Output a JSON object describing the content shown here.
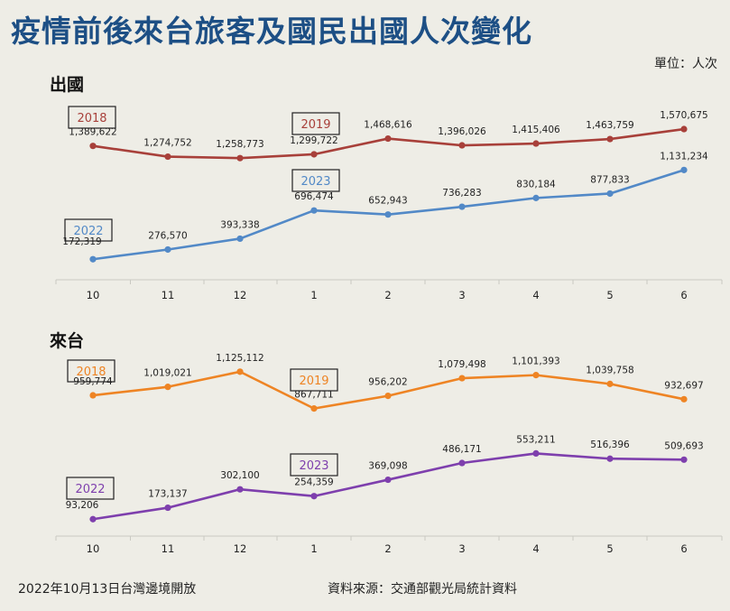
{
  "title": "疫情前後來台旅客及國民出國人次變化",
  "unit": "單位：人次",
  "footer_left": "2022年10月13日台灣邊境開放",
  "footer_right": "資料來源：交通部觀光局統計資料",
  "chart_data": [
    {
      "type": "line",
      "title": "出國",
      "categories": [
        "10",
        "11",
        "12",
        "1",
        "2",
        "3",
        "4",
        "5",
        "6"
      ],
      "series": [
        {
          "name": "2018",
          "start_name": "2018",
          "mid_name": "2019",
          "color": "#a8403a",
          "values": [
            1389622,
            1274752,
            1258773,
            1299722,
            1468616,
            1396026,
            1415406,
            1463759,
            1570675
          ],
          "labels": [
            "1,389,622",
            "1,274,752",
            "1,258,773",
            "1,299,722",
            "1,468,616",
            "1,396,026",
            "1,415,406",
            "1,463,759",
            "1,570,675"
          ]
        },
        {
          "name": "2022",
          "start_name": "2022",
          "mid_name": "2023",
          "color": "#5289c7",
          "values": [
            172319,
            276570,
            393338,
            696474,
            652943,
            736283,
            830184,
            877833,
            1131234
          ],
          "labels": [
            "172,319",
            "276,570",
            "393,338",
            "696,474",
            "652,943",
            "736,283",
            "830,184",
            "877,833",
            "1,131,234"
          ]
        }
      ],
      "xlabel": "",
      "ylabel": ""
    },
    {
      "type": "line",
      "title": "來台",
      "categories": [
        "10",
        "11",
        "12",
        "1",
        "2",
        "3",
        "4",
        "5",
        "6"
      ],
      "series": [
        {
          "name": "2018",
          "start_name": "2018",
          "mid_name": "2019",
          "color": "#ee8424",
          "values": [
            959774,
            1019021,
            1125112,
            867711,
            956202,
            1079498,
            1101393,
            1039758,
            932697
          ],
          "labels": [
            "959,774",
            "1,019,021",
            "1,125,112",
            "867,711",
            "956,202",
            "1,079,498",
            "1,101,393",
            "1,039,758",
            "932,697"
          ]
        },
        {
          "name": "2022",
          "start_name": "2022",
          "mid_name": "2023",
          "color": "#7e3fad",
          "values": [
            93206,
            173137,
            302100,
            254359,
            369098,
            486171,
            553211,
            516396,
            509693
          ],
          "labels": [
            "93,206",
            "173,137",
            "302,100",
            "254,359",
            "369,098",
            "486,171",
            "553,211",
            "516,396",
            "509,693"
          ]
        }
      ],
      "xlabel": "",
      "ylabel": ""
    }
  ]
}
